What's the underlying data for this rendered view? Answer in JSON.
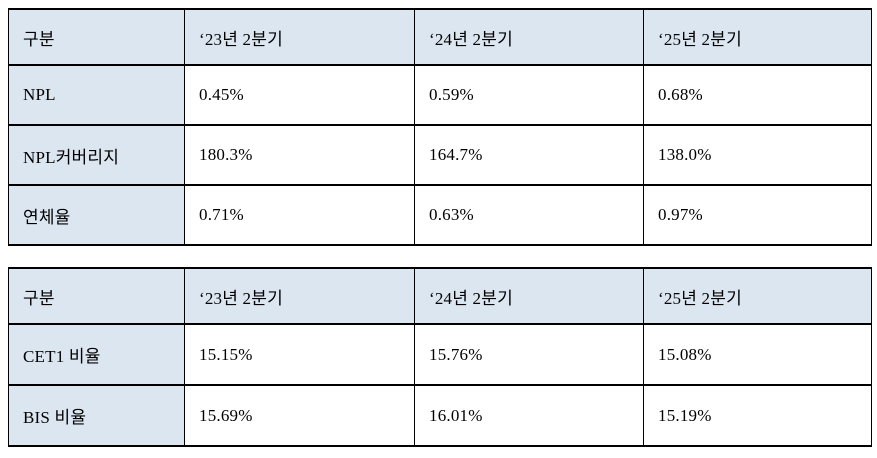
{
  "colors": {
    "header_bg": "#dce6f1",
    "label_column_bg": "#dce6f1",
    "border": "#000000",
    "text": "#000000",
    "page_bg": "#ffffff"
  },
  "tables": [
    {
      "name": "asset-quality-table",
      "columns": [
        "구분",
        "‘23년 2분기",
        "‘24년 2분기",
        "‘25년 2분기"
      ],
      "rows": [
        {
          "label": "NPL",
          "values": [
            "0.45%",
            "0.59%",
            "0.68%"
          ]
        },
        {
          "label": "NPL커버리지",
          "values": [
            "180.3%",
            "164.7%",
            "138.0%"
          ]
        },
        {
          "label": "연체율",
          "values": [
            "0.71%",
            "0.63%",
            "0.97%"
          ]
        }
      ]
    },
    {
      "name": "capital-ratio-table",
      "columns": [
        "구분",
        "‘23년 2분기",
        "‘24년 2분기",
        "‘25년 2분기"
      ],
      "rows": [
        {
          "label": "CET1 비율",
          "values": [
            "15.15%",
            "15.76%",
            "15.08%"
          ]
        },
        {
          "label": "BIS 비율",
          "values": [
            "15.69%",
            "16.01%",
            "15.19%"
          ]
        }
      ]
    }
  ]
}
